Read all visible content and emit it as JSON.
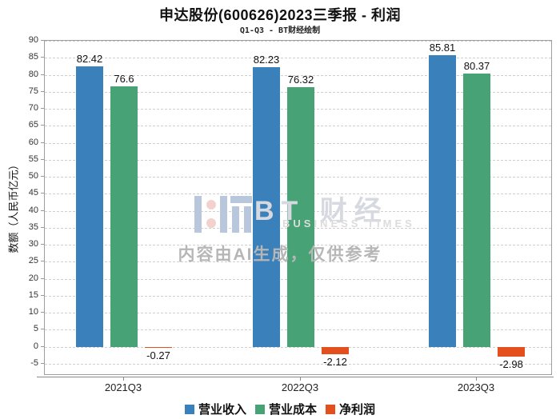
{
  "title": "申达股份(600626)2023三季报 - 利润",
  "subtitle": "Q1-Q3 - BT财经绘制",
  "watermark": {
    "brand": "BT 财经",
    "brand_sub": "BUSINESS TIMES",
    "notice": "内容由AI生成，仅供参考",
    "bar_color": "#b9c7dd",
    "dot_color": "#f3d2cd"
  },
  "chart_data": {
    "type": "bar",
    "title": "申达股份(600626)2023三季报 - 利润",
    "subtitle": "Q1-Q3 - BT财经绘制",
    "categories": [
      "2021Q3",
      "2022Q3",
      "2023Q3"
    ],
    "series": [
      {
        "name": "营业收入",
        "color": "#3a80bb",
        "values": [
          82.42,
          82.23,
          85.81
        ],
        "labels": [
          "82.42",
          "82.23",
          "85.81"
        ]
      },
      {
        "name": "营业成本",
        "color": "#47a376",
        "values": [
          76.6,
          76.32,
          80.37
        ],
        "labels": [
          "76.6",
          "76.32",
          "80.37"
        ]
      },
      {
        "name": "净利润",
        "color": "#e44f1e",
        "values": [
          -0.27,
          -2.12,
          -2.98
        ],
        "labels": [
          "-0.27",
          "-2.12",
          "-2.98"
        ]
      }
    ],
    "ylabel": "数额（人民币亿元）",
    "xlabel": "",
    "ylim": [
      -8.1,
      90
    ],
    "yticks_min": -5,
    "yticks_max": 90,
    "yticks_step": 5,
    "grid": true,
    "grid_style": "dashed",
    "legend_position": "bottom"
  }
}
